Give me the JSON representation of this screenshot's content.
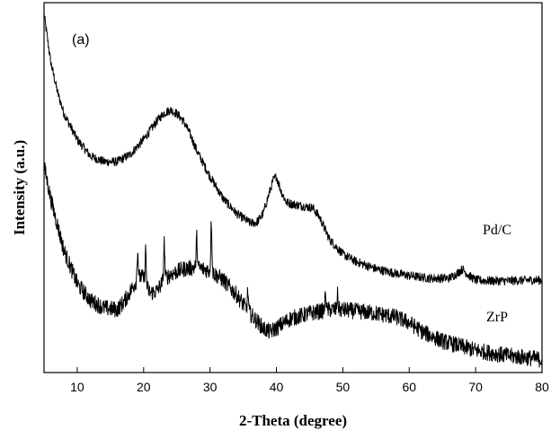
{
  "chart_data": {
    "type": "line",
    "panel_label": "(a)",
    "xlabel": "2-Theta (degree)",
    "ylabel": "Intensity (a.u.)",
    "xlim": [
      5,
      80
    ],
    "ylim": [
      0,
      1
    ],
    "xticks": [
      10,
      20,
      30,
      40,
      50,
      60,
      70,
      80
    ],
    "yticks_shown": false,
    "grid": false,
    "legend": "none",
    "series": [
      {
        "name": "Pd/C",
        "color": "#000000",
        "x": [
          5,
          6,
          7,
          8,
          10,
          12,
          14,
          16,
          18,
          20,
          22,
          23,
          24,
          25,
          26,
          27,
          28,
          30,
          32,
          34,
          36,
          37,
          38,
          39,
          39.5,
          40,
          40.7,
          41.5,
          42.5,
          44,
          45.5,
          46.5,
          48,
          50,
          52,
          55,
          58,
          60,
          63,
          66,
          67,
          68,
          69,
          70,
          72,
          75,
          78,
          80
        ],
        "y": [
          0.97,
          0.84,
          0.76,
          0.7,
          0.63,
          0.585,
          0.57,
          0.57,
          0.59,
          0.63,
          0.68,
          0.7,
          0.71,
          0.7,
          0.68,
          0.645,
          0.6,
          0.53,
          0.47,
          0.43,
          0.405,
          0.405,
          0.43,
          0.49,
          0.52,
          0.53,
          0.49,
          0.46,
          0.455,
          0.45,
          0.445,
          0.42,
          0.36,
          0.32,
          0.3,
          0.28,
          0.268,
          0.262,
          0.255,
          0.255,
          0.265,
          0.28,
          0.262,
          0.25,
          0.248,
          0.248,
          0.25,
          0.25
        ]
      },
      {
        "name": "ZrP",
        "color": "#000000",
        "x": [
          5,
          6,
          7,
          8,
          10,
          12,
          14,
          16,
          17,
          18,
          19,
          19.5,
          20,
          20.5,
          21,
          22,
          23,
          24,
          26,
          28,
          30,
          32,
          34,
          36,
          38,
          39,
          40,
          42,
          45,
          48,
          50,
          55,
          58,
          60,
          62,
          65,
          70,
          75,
          78,
          80
        ],
        "y": [
          0.56,
          0.47,
          0.4,
          0.33,
          0.24,
          0.195,
          0.175,
          0.17,
          0.19,
          0.22,
          0.25,
          0.26,
          0.255,
          0.23,
          0.215,
          0.22,
          0.25,
          0.265,
          0.28,
          0.285,
          0.275,
          0.25,
          0.21,
          0.16,
          0.12,
          0.11,
          0.12,
          0.145,
          0.16,
          0.17,
          0.17,
          0.16,
          0.15,
          0.135,
          0.11,
          0.085,
          0.06,
          0.045,
          0.04,
          0.035
        ]
      }
    ],
    "sharp_peaks": [
      {
        "series": "ZrP",
        "x": 19.1,
        "height": 0.08
      },
      {
        "series": "ZrP",
        "x": 20.3,
        "height": 0.09
      },
      {
        "series": "ZrP",
        "x": 23.1,
        "height": 0.1
      },
      {
        "series": "ZrP",
        "x": 28.0,
        "height": 0.08
      },
      {
        "series": "ZrP",
        "x": 30.2,
        "height": 0.14
      },
      {
        "series": "ZrP",
        "x": 35.7,
        "height": 0.05
      },
      {
        "series": "ZrP",
        "x": 47.4,
        "height": 0.05
      },
      {
        "series": "ZrP",
        "x": 49.2,
        "height": 0.04
      }
    ]
  }
}
